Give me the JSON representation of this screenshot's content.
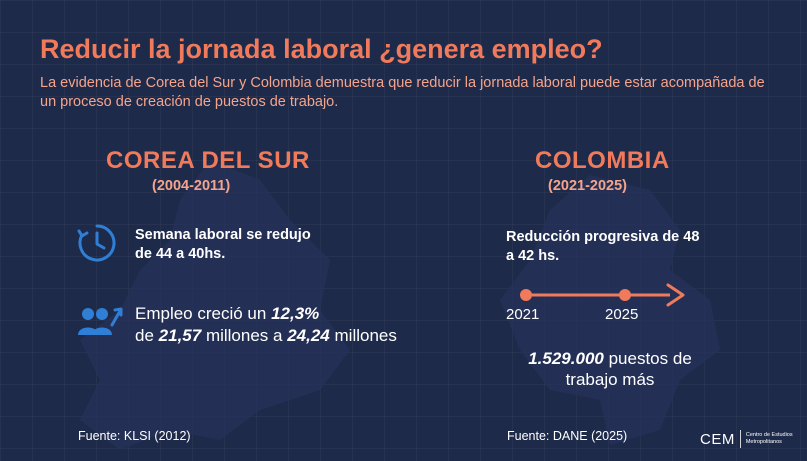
{
  "header": {
    "title": "Reducir la jornada laboral ¿genera empleo?",
    "subtitle": "La evidencia de Corea del Sur y Colombia demuestra que reducir la jornada laboral puede estar acompañada de un proceso de creación de puestos de trabajo."
  },
  "korea": {
    "name": "COREA DEL SUR",
    "period": "(2004-2011)",
    "week_text": "Semana laboral se redujo de 44 a 40hs.",
    "employment": {
      "prefix": "Empleo creció un",
      "growth": "12,3%",
      "from_prefix": "de",
      "from_value": "21,57",
      "middle": "millones a",
      "to_value": "24,24",
      "suffix": "millones"
    },
    "source": "Fuente: KLSI (2012)"
  },
  "colombia": {
    "name": "COLOMBIA",
    "period": "(2021-2025)",
    "reduction_text": "Reducción progresiva de 48 a 42 hs.",
    "timeline": {
      "start": "2021",
      "end": "2025"
    },
    "jobs": {
      "value": "1.529.000",
      "text_1": "puestos de",
      "text_2": "trabajo más"
    },
    "source": "Fuente: DANE (2025)"
  },
  "logo": {
    "mark": "CEM",
    "text": "Centro de Estudios Metropolitanos"
  },
  "colors": {
    "background": "#1e2a4a",
    "accent": "#f07a5a",
    "accent_light": "#f5a48c",
    "icon_blue": "#2f7fd6"
  },
  "icons": [
    "clock-icon",
    "people-growth-icon",
    "timeline-arrow-icon"
  ]
}
